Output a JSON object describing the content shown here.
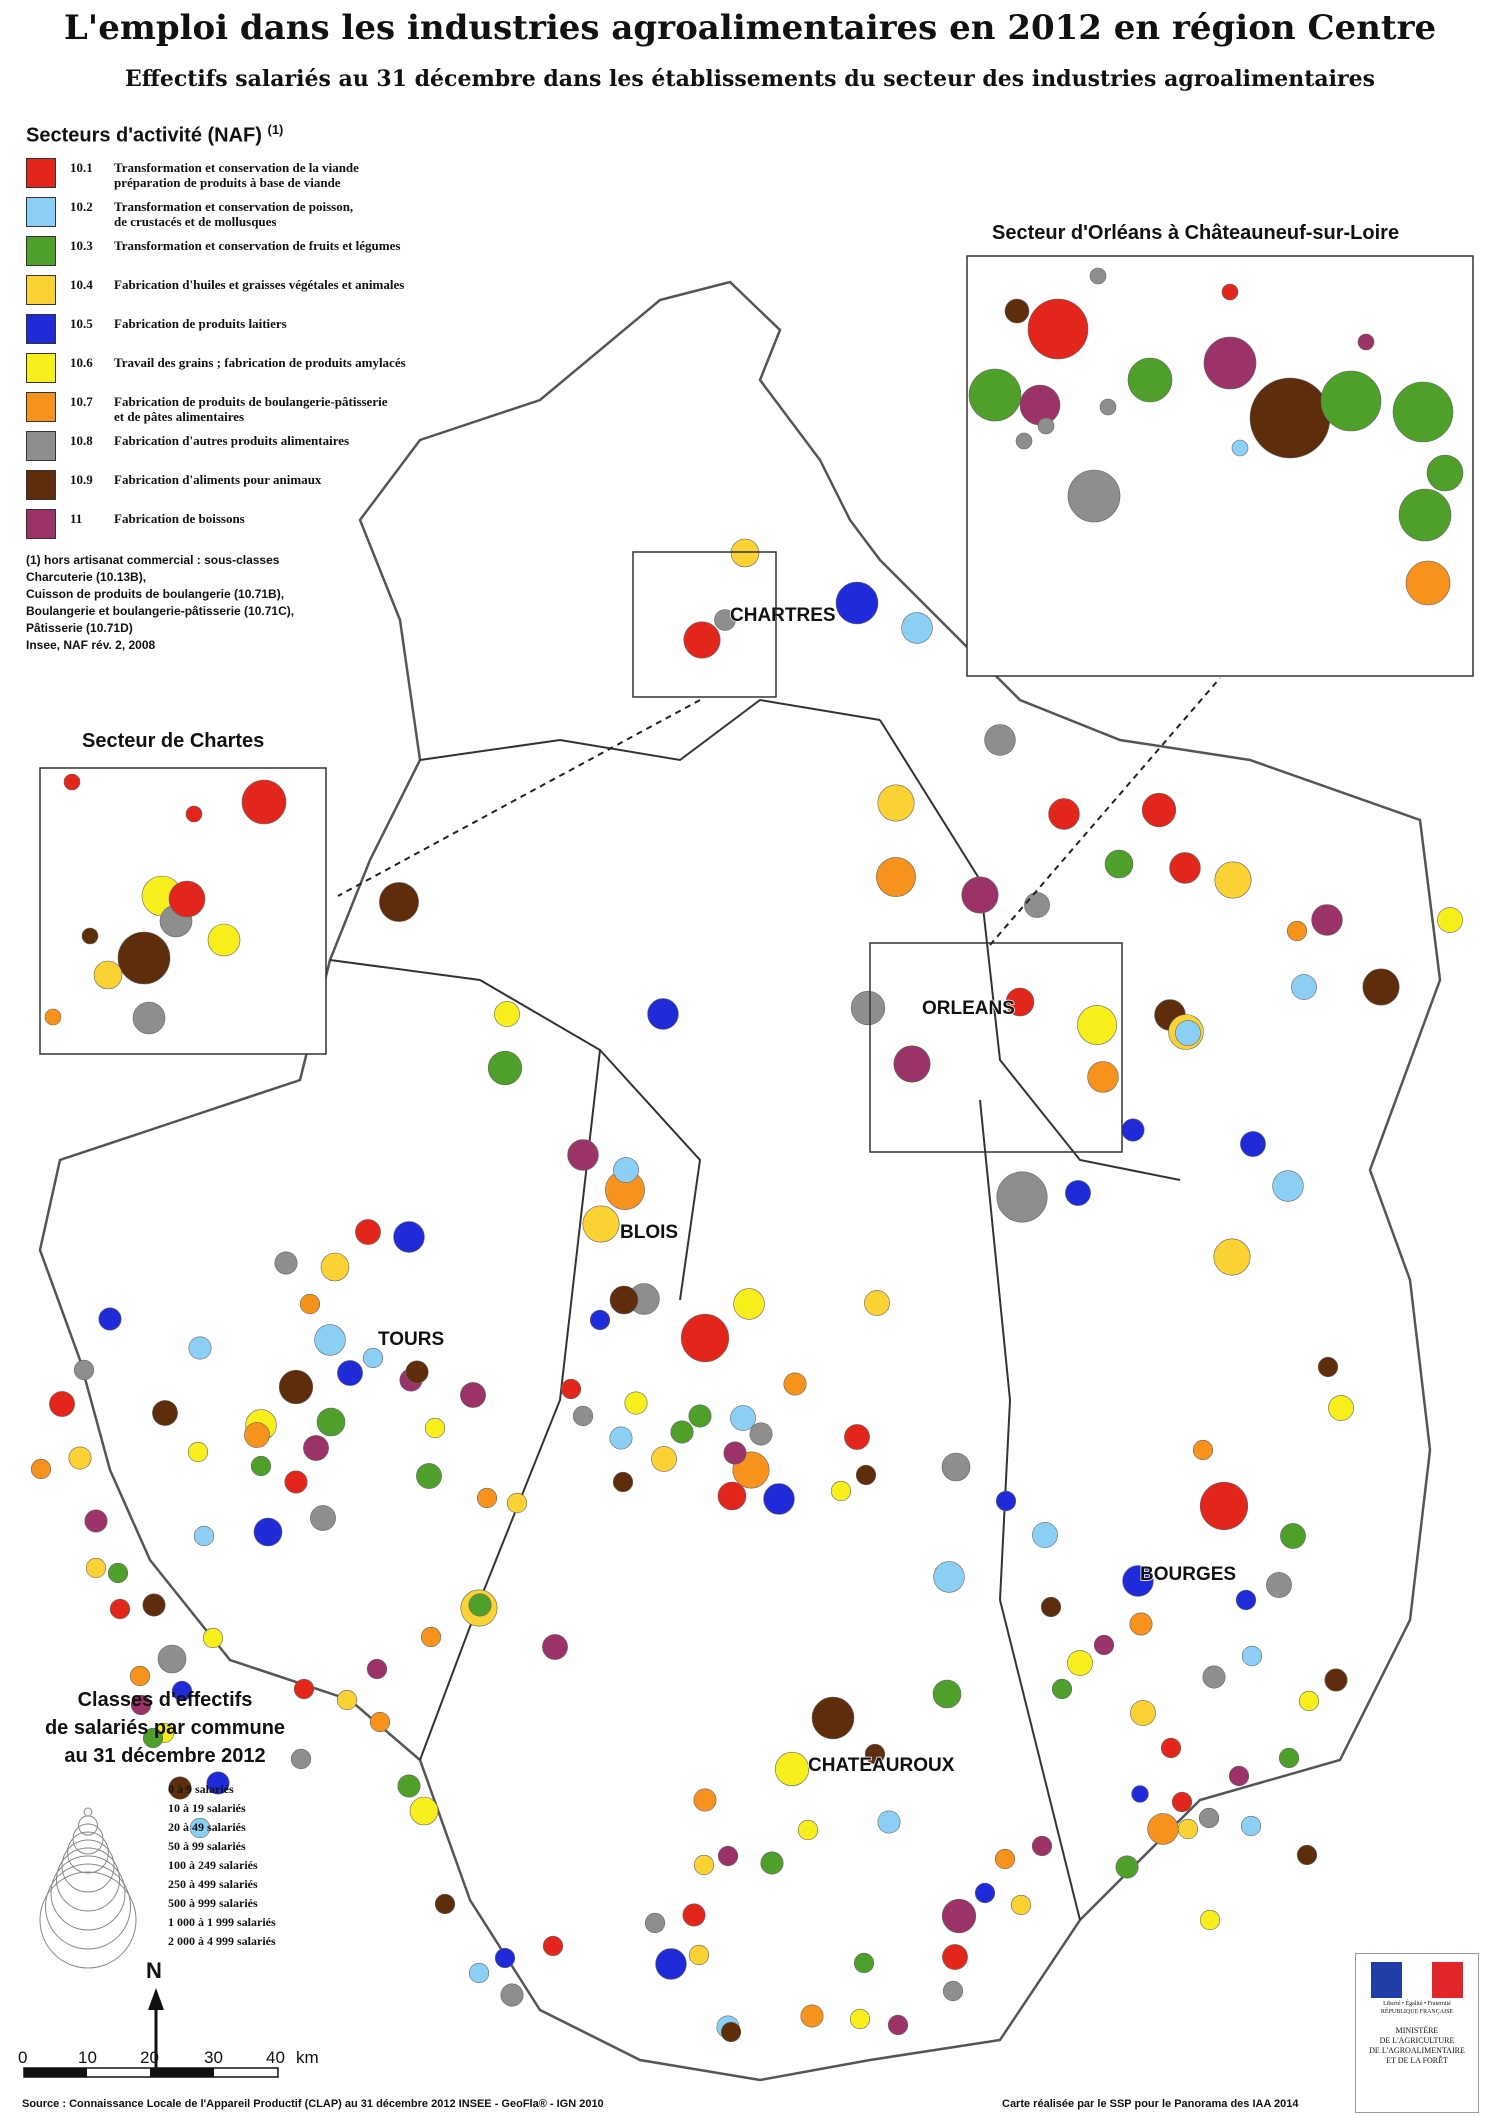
{
  "title": "L'emploi dans les industries agroalimentaires en 2012 en région Centre",
  "subtitle": "Effectifs salariés au 31 décembre  dans les établissements du secteur des industries agroalimentaires",
  "legend": {
    "heading": "Secteurs d'activité (NAF)",
    "heading_sup": "(1)",
    "sectors": [
      {
        "code": "10.1",
        "label": "Transformation et conservation de la viande\npréparation de produits à base de viande",
        "color": "#e3261b"
      },
      {
        "code": "10.2",
        "label": "Transformation et conservation de poisson,\nde crustacés et de mollusques",
        "color": "#8ccff5"
      },
      {
        "code": "10.3",
        "label": "Transformation et conservation de fruits et légumes",
        "color": "#4fa02a"
      },
      {
        "code": "10.4",
        "label": "Fabrication d'huiles et graisses végétales et animales",
        "color": "#fbd234"
      },
      {
        "code": "10.5",
        "label": "Fabrication de produits laitiers",
        "color": "#1f2bd8"
      },
      {
        "code": "10.6",
        "label": "Travail des grains ; fabrication de produits amylacés",
        "color": "#f7ee1c"
      },
      {
        "code": "10.7",
        "label": "Fabrication de produits de boulangerie-pâtisserie\net de pâtes alimentaires",
        "color": "#f7931c"
      },
      {
        "code": "10.8",
        "label": "Fabrication d'autres produits alimentaires",
        "color": "#8e8e8e"
      },
      {
        "code": "10.9",
        "label": "Fabrication d'aliments pour animaux",
        "color": "#5e2d0b"
      },
      {
        "code": "11",
        "label": "Fabrication de boissons",
        "color": "#9c3368"
      }
    ],
    "note_marker": "(1)",
    "note": "hors artisanat commercial : sous-classes\nCharcuterie (10.13B),\nCuisson de produits de boulangerie (10.71B),\nBoulangerie et boulangerie-pâtisserie (10.71C),\nPâtisserie (10.71D)\nInsee, NAF rév. 2, 2008"
  },
  "insets": {
    "chartres_title": "Secteur de Chartes",
    "orleans_title": "Secteur d'Orléans à Châteauneuf-sur-Loire"
  },
  "cities": [
    "CHARTRES",
    "ORLEANS",
    "BLOIS",
    "TOURS",
    "BOURGES",
    "CHATEAUROUX"
  ],
  "size_legend": {
    "title_lines": [
      "Classes d'effectifs",
      "de salariés par commune",
      "au 31 décembre 2012"
    ],
    "classes": [
      "0 à 9 salariés",
      "10 à 19 salariés",
      "20 à 49 salariés",
      "50 à 99 salariés",
      "100 à 249 salariés",
      "250 à 499 salariés",
      "500 à 999 salariés",
      "1 000 à 1 999 salariés",
      "2 000 à 4 999 salariés"
    ]
  },
  "north_label": "N",
  "scale": {
    "ticks": [
      "0",
      "10",
      "20",
      "30",
      "40"
    ],
    "unit": "km"
  },
  "footer": {
    "source": "Source : Connaissance Locale de l'Appareil Productif (CLAP) au 31 décembre 2012  INSEE - GeoFla® - IGN 2010",
    "credit": "Carte réalisée par le SSP pour le Panorama des IAA 2014"
  },
  "logo": {
    "motto": "Liberté • Égalité • Fraternité",
    "republic": "RÉPUBLIQUE FRANÇAISE",
    "ministry": "MINISTÈRE\nDE L'AGRICULTURE\nDE L'AGROALIMENTAIRE\nET DE LA FORÊT"
  }
}
